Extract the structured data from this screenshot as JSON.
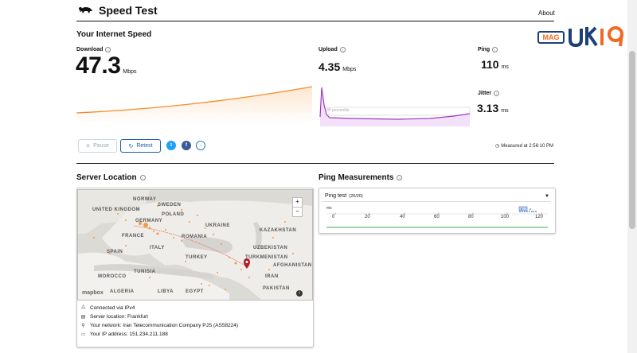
{
  "header": {
    "app_title": "Speed Test",
    "about": "About"
  },
  "speed": {
    "section_title": "Your Internet Speed",
    "download": {
      "label": "Download",
      "value": "47.3",
      "unit": "Mbps"
    },
    "upload": {
      "label": "Upload",
      "value": "4.35",
      "unit": "Mbps"
    },
    "ping": {
      "label": "Ping",
      "value": "110",
      "unit": "ms"
    },
    "jitter": {
      "label": "Jitter",
      "value": "3.13",
      "unit": "ms"
    },
    "percentile_label": "90 percentile"
  },
  "actions": {
    "pause": "Pause",
    "retest": "Retest",
    "measured_at": "Measured at 2:56:10 PM"
  },
  "server": {
    "section_title": "Server Location",
    "map_labels": [
      "NORWAY",
      "SWEDEN",
      "UNITED KINGDOM",
      "POLAND",
      "UKRAINE",
      "GERMANY",
      "FRANCE",
      "ROMANIA",
      "KAZAKHSTAN",
      "SPAIN",
      "ITALY",
      "UZBEKISTAN",
      "TURKEY",
      "TURKMENISTAN",
      "MOROCCO",
      "TUNISIA",
      "IRAN",
      "ALGERIA",
      "LIBYA",
      "EGYPT",
      "AFGHANISTAN",
      "PAKISTAN"
    ],
    "map_credit": "mapbox",
    "zoom_in": "+",
    "zoom_out": "−",
    "info": [
      {
        "icon": "network-icon",
        "text": "Connected via IPv4"
      },
      {
        "icon": "server-icon",
        "text": "Server location: Frankfurt"
      },
      {
        "icon": "location-pin-icon",
        "text": "Your network: Iran Telecommunication Company PJS (AS58224)"
      },
      {
        "icon": "ip-card-icon",
        "text": "Your IP address: 151.234.211.188"
      }
    ]
  },
  "ping_measurements": {
    "section_title": "Ping Measurements",
    "dropdown_label": "Ping test",
    "dropdown_count": "(20/20)",
    "axis_unit": "ms",
    "ticks": [
      "0",
      "20",
      "40",
      "60",
      "80",
      "100",
      "120"
    ]
  },
  "colors": {
    "download_line": "#f28c28",
    "upload_line": "#9b3bbf",
    "twitter": "#1da1f2",
    "facebook": "#3b5998",
    "download_btn": "#2a7ab8",
    "logo_blue": "#1c3f7a",
    "logo_orange": "#ef6a22",
    "ping_green": "#3fae4a"
  },
  "logo": {
    "mag": "MAG",
    "brand": "UKIG"
  }
}
